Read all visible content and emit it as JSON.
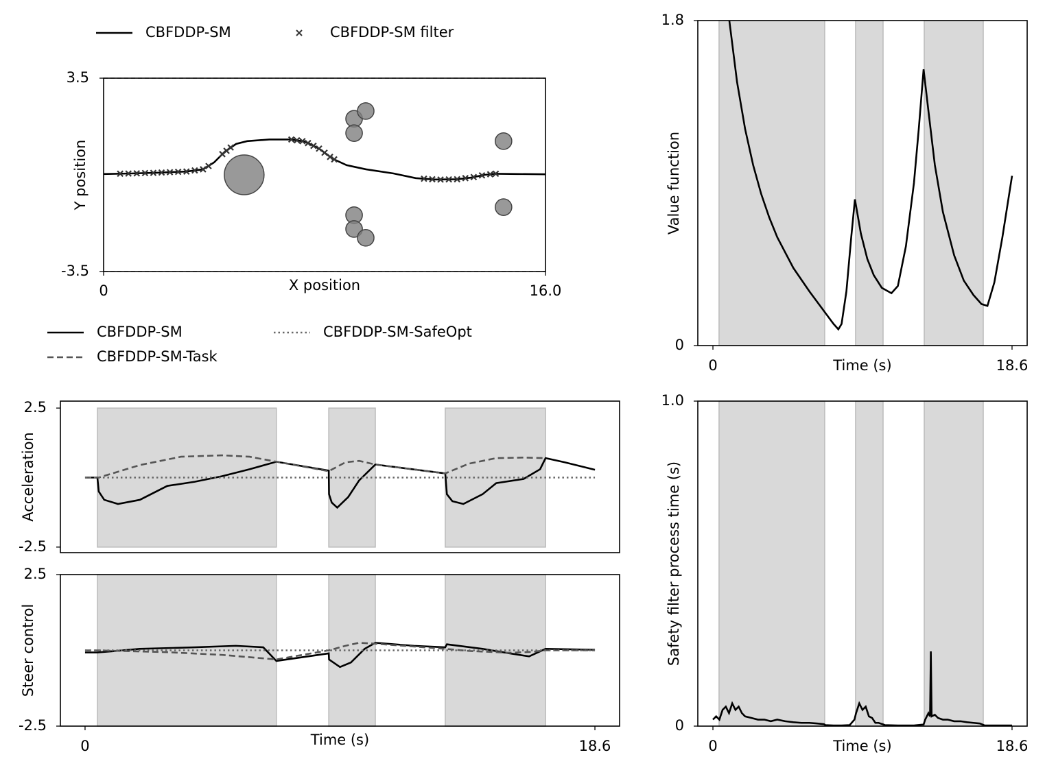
{
  "chart_data": [
    {
      "type": "trajectory",
      "xlabel": "X position",
      "ylabel": "Y position",
      "xlim": [
        0,
        16
      ],
      "ylim": [
        -3.5,
        3.5
      ],
      "xticks": [
        0,
        {
          "value": 16,
          "label": "16.0"
        }
      ],
      "yticks": [
        3.5,
        -3.5
      ],
      "series": [
        {
          "name": "CBFDDP-SM",
          "color": "#000000",
          "dash": "solid",
          "x": [
            0,
            1,
            2,
            3,
            3.6,
            4.0,
            4.4,
            4.8,
            5.2,
            6,
            6.8,
            7.3,
            7.8,
            8.3,
            8.8,
            9.5,
            10.5,
            11.3,
            12,
            12.8,
            13.3,
            13.8,
            14.2,
            15,
            16
          ],
          "y": [
            0.03,
            0.05,
            0.08,
            0.12,
            0.2,
            0.45,
            0.85,
            1.12,
            1.22,
            1.28,
            1.28,
            1.2,
            0.95,
            0.58,
            0.35,
            0.2,
            0.05,
            -0.12,
            -0.17,
            -0.16,
            -0.1,
            0.0,
            0.04,
            0.03,
            0.02
          ]
        },
        {
          "name": "CBFDDP-SM filter",
          "color": "#333333",
          "marker": "x",
          "x": [
            0.6,
            0.9,
            1.2,
            1.5,
            1.8,
            2.1,
            2.4,
            2.7,
            3.0,
            3.3,
            3.6,
            3.8,
            4.3,
            4.45,
            4.6,
            6.8,
            7.0,
            7.2,
            7.4,
            7.6,
            7.8,
            8.0,
            8.2,
            8.35,
            11.6,
            11.9,
            12.2,
            12.5,
            12.8,
            13.1,
            13.4,
            13.7,
            14.0,
            14.2
          ],
          "y": [
            0.042,
            0.047,
            0.054,
            0.065,
            0.072,
            0.084,
            0.096,
            0.108,
            0.12,
            0.16,
            0.2,
            0.32,
            0.75,
            0.87,
            0.99,
            1.28,
            1.25,
            1.22,
            1.15,
            1.05,
            0.95,
            0.8,
            0.65,
            0.56,
            -0.14,
            -0.16,
            -0.17,
            -0.165,
            -0.16,
            -0.12,
            -0.08,
            -0.02,
            0.02,
            0.04
          ]
        }
      ],
      "obstacles": {
        "color": "#808080",
        "x": [
          5.09,
          9.07,
          9.49,
          9.07,
          14.48,
          14.48,
          9.07,
          9.07,
          9.49
        ],
        "y": [
          0,
          2.03,
          2.31,
          1.51,
          1.22,
          -1.17,
          -1.46,
          -1.96,
          -2.28
        ],
        "r": [
          0.72,
          0.3,
          0.3,
          0.3,
          0.3,
          0.3,
          0.3,
          0.3,
          0.3
        ]
      }
    },
    {
      "type": "line",
      "xlabel": "Time (s)",
      "ylabel": "Value function",
      "xlim": [
        -0.94,
        19.54
      ],
      "ylim": [
        0,
        1.8
      ],
      "xticks": [
        0,
        18.6
      ],
      "yticks": [
        0,
        1.8
      ],
      "shaded": [
        [
          0.38,
          6.95
        ],
        [
          8.87,
          10.58
        ],
        [
          13.14,
          16.81
        ]
      ],
      "series": [
        {
          "color": "#000000",
          "dash": "solid",
          "x": [
            1.02,
            1.5,
            2,
            2.5,
            3,
            3.5,
            4,
            5,
            6,
            7,
            7.5,
            7.8,
            8.0,
            8.3,
            8.6,
            8.83,
            9.2,
            9.6,
            10,
            10.5,
            11.1,
            11.5,
            12,
            12.5,
            12.8,
            13.1,
            13.4,
            13.8,
            14.3,
            15,
            15.6,
            16.2,
            16.7,
            17.07,
            17.5,
            18,
            18.6
          ],
          "y": [
            1.8,
            1.46,
            1.2,
            1.0,
            0.84,
            0.71,
            0.6,
            0.43,
            0.3,
            0.18,
            0.12,
            0.09,
            0.12,
            0.3,
            0.6,
            0.81,
            0.62,
            0.48,
            0.39,
            0.32,
            0.29,
            0.33,
            0.55,
            0.9,
            1.2,
            1.53,
            1.3,
            1.0,
            0.74,
            0.5,
            0.36,
            0.28,
            0.23,
            0.22,
            0.35,
            0.6,
            0.94
          ]
        }
      ]
    },
    {
      "type": "line",
      "ylabel": "Acceleration",
      "xlim": [
        -0.9,
        19.5
      ],
      "ylim": [
        -2.7,
        2.75
      ],
      "yticks": [
        2.5,
        -2.5
      ],
      "shaded": [
        [
          0.45,
          6.98
        ],
        [
          8.89,
          10.59
        ],
        [
          13.14,
          16.8
        ]
      ],
      "shade_y": [
        -2.5,
        2.5
      ],
      "series": [
        {
          "name": "CBFDDP-SM",
          "color": "#000000",
          "dash": "solid",
          "x": [
            0,
            0.45,
            0.5,
            0.7,
            1.2,
            2,
            3,
            4,
            5,
            6,
            6.98,
            8.89,
            8.9,
            9.0,
            9.2,
            9.6,
            10.0,
            10.59,
            13.14,
            13.2,
            13.4,
            13.8,
            14.5,
            15,
            16,
            16.6,
            16.8,
            17.5,
            18.6
          ],
          "y": [
            0,
            0,
            -0.5,
            -0.8,
            -0.95,
            -0.8,
            -0.3,
            -0.15,
            0.05,
            0.3,
            0.57,
            0.25,
            -0.6,
            -0.9,
            -1.08,
            -0.7,
            -0.1,
            0.47,
            0.15,
            -0.6,
            -0.85,
            -0.95,
            -0.6,
            -0.2,
            -0.05,
            0.3,
            0.7,
            0.55,
            0.28
          ]
        },
        {
          "name": "CBFDDP-SM-Task",
          "color": "#555555",
          "dash": "dashed",
          "x": [
            0,
            0.5,
            2,
            3.5,
            5,
            6,
            6.98,
            8.89,
            9.5,
            10.0,
            10.59,
            13.14,
            14,
            15,
            16,
            16.8
          ],
          "y": [
            0,
            0,
            0.45,
            0.75,
            0.8,
            0.75,
            0.57,
            0.23,
            0.55,
            0.6,
            0.47,
            0.15,
            0.5,
            0.7,
            0.72,
            0.7
          ]
        },
        {
          "name": "CBFDDP-SM-SafeOpt",
          "color": "#666666",
          "dash": "dotted",
          "x": [
            0,
            18.6
          ],
          "y": [
            0,
            0
          ]
        }
      ]
    },
    {
      "type": "line",
      "xlabel": "Time (s)",
      "ylabel": "Steer control",
      "xlim": [
        -0.9,
        19.5
      ],
      "ylim": [
        -2.5,
        2.5
      ],
      "xticks": [
        0,
        18.6
      ],
      "yticks": [
        2.5,
        -2.5
      ],
      "shaded": [
        [
          0.45,
          6.98
        ],
        [
          8.89,
          10.59
        ],
        [
          13.14,
          16.8
        ]
      ],
      "series": [
        {
          "color": "#000000",
          "dash": "solid",
          "x": [
            0,
            0.45,
            1,
            2,
            4,
            5.5,
            6.5,
            6.98,
            8.89,
            8.9,
            9.3,
            9.7,
            10.2,
            10.59,
            12,
            13.14,
            13.2,
            14.5,
            15.5,
            16.2,
            16.8,
            18.6
          ],
          "y": [
            -0.07,
            -0.07,
            -0.03,
            0.05,
            0.1,
            0.15,
            0.1,
            -0.35,
            -0.1,
            -0.3,
            -0.55,
            -0.4,
            0.05,
            0.25,
            0.15,
            0.1,
            0.2,
            0.05,
            -0.1,
            -0.2,
            0.05,
            0.02
          ]
        },
        {
          "color": "#555555",
          "dash": "dashed",
          "x": [
            0,
            0.45,
            3,
            5,
            6.98,
            8.89,
            9.5,
            10.0,
            10.59,
            13.14,
            14,
            15.5,
            16.3,
            16.8,
            18.6
          ],
          "y": [
            0.0,
            0,
            -0.06,
            -0.15,
            -0.3,
            0,
            0.15,
            0.25,
            0.22,
            0.05,
            -0.02,
            -0.08,
            -0.05,
            0.0,
            0.0
          ]
        },
        {
          "color": "#666666",
          "dash": "dotted",
          "x": [
            0,
            18.6
          ],
          "y": [
            0,
            0
          ]
        }
      ]
    },
    {
      "type": "line",
      "xlabel": "Time (s)",
      "ylabel": "Safety filter process time (s)",
      "xlim": [
        -0.94,
        19.54
      ],
      "ylim": [
        0,
        1
      ],
      "xticks": [
        0,
        18.6
      ],
      "yticks": [
        0,
        {
          "value": 1,
          "label": "1.0"
        }
      ],
      "shaded": [
        [
          0.38,
          6.95
        ],
        [
          8.87,
          10.58
        ],
        [
          13.14,
          16.81
        ]
      ],
      "series": [
        {
          "color": "#000000",
          "dash": "solid",
          "x": [
            0,
            0.2,
            0.4,
            0.6,
            0.8,
            1.0,
            1.2,
            1.4,
            1.6,
            1.8,
            2.0,
            2.4,
            2.8,
            3.2,
            3.6,
            4.0,
            4.5,
            5.0,
            5.5,
            6.0,
            6.5,
            6.9,
            7.0,
            7.5,
            8.0,
            8.5,
            8.8,
            8.9,
            9.1,
            9.3,
            9.5,
            9.7,
            9.9,
            10.1,
            10.3,
            10.6,
            10.7,
            11.5,
            12.5,
            13.1,
            13.2,
            13.4,
            13.5,
            13.55,
            13.6,
            13.8,
            14.0,
            14.3,
            14.6,
            15.0,
            15.4,
            15.8,
            16.2,
            16.6,
            16.8,
            16.9,
            17.5,
            18.0,
            18.6
          ],
          "y": [
            0.02,
            0.03,
            0.02,
            0.05,
            0.06,
            0.04,
            0.07,
            0.05,
            0.06,
            0.04,
            0.03,
            0.025,
            0.02,
            0.02,
            0.015,
            0.02,
            0.015,
            0.012,
            0.01,
            0.01,
            0.008,
            0.006,
            0.003,
            0.002,
            0.002,
            0.003,
            0.02,
            0.04,
            0.07,
            0.05,
            0.06,
            0.03,
            0.025,
            0.01,
            0.01,
            0.005,
            0.003,
            0.002,
            0.002,
            0.005,
            0.02,
            0.04,
            0.03,
            0.23,
            0.03,
            0.035,
            0.025,
            0.02,
            0.02,
            0.015,
            0.015,
            0.012,
            0.01,
            0.008,
            0.004,
            0.002,
            0.002,
            0.002,
            0.002
          ]
        }
      ]
    }
  ]
}
